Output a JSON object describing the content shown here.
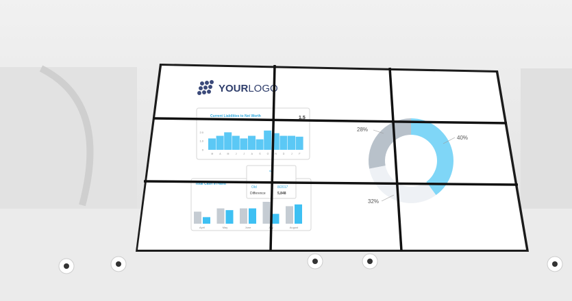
{
  "logo": {
    "text": "YOURLOGO",
    "bold": "YOUR",
    "light": "LOGO"
  },
  "chart_data": [
    {
      "type": "bar",
      "title": "Current Liabilities to Net Worth",
      "headline_value": "1.5",
      "categories": [
        "M",
        "A",
        "M",
        "J",
        "J",
        "A",
        "S",
        "O",
        "N",
        "D",
        "J",
        "F"
      ],
      "values": [
        1.3,
        1.6,
        2.0,
        1.6,
        1.3,
        1.6,
        1.2,
        2.2,
        1.9,
        1.6,
        1.6,
        1.5
      ],
      "yticks": [
        "2.0",
        "1.0",
        "0"
      ],
      "ylim": [
        0,
        2.5
      ],
      "color": "#5bc8f5"
    },
    {
      "type": "bar",
      "title": "Total Cash in Hand",
      "categories": [
        "April",
        "May",
        "June",
        "July",
        "August"
      ],
      "series": [
        {
          "values": [
            55,
            70,
            70,
            100,
            80
          ],
          "color": "#c5ccd3"
        },
        {
          "values": [
            30,
            62,
            70,
            45,
            88
          ],
          "color": "#3ec0f3"
        }
      ]
    },
    {
      "type": "pie",
      "labels": [
        "28%",
        "40%",
        "32%"
      ],
      "values": [
        28,
        40,
        32
      ],
      "colors": [
        "#b8c1ca",
        "#7fd6f7",
        "#eef1f5"
      ]
    }
  ],
  "tooltip": {
    "title": "Apr",
    "left_label": "Old",
    "right_label": "8/2017",
    "difference_label": "Difference",
    "difference_value": "5,848"
  }
}
